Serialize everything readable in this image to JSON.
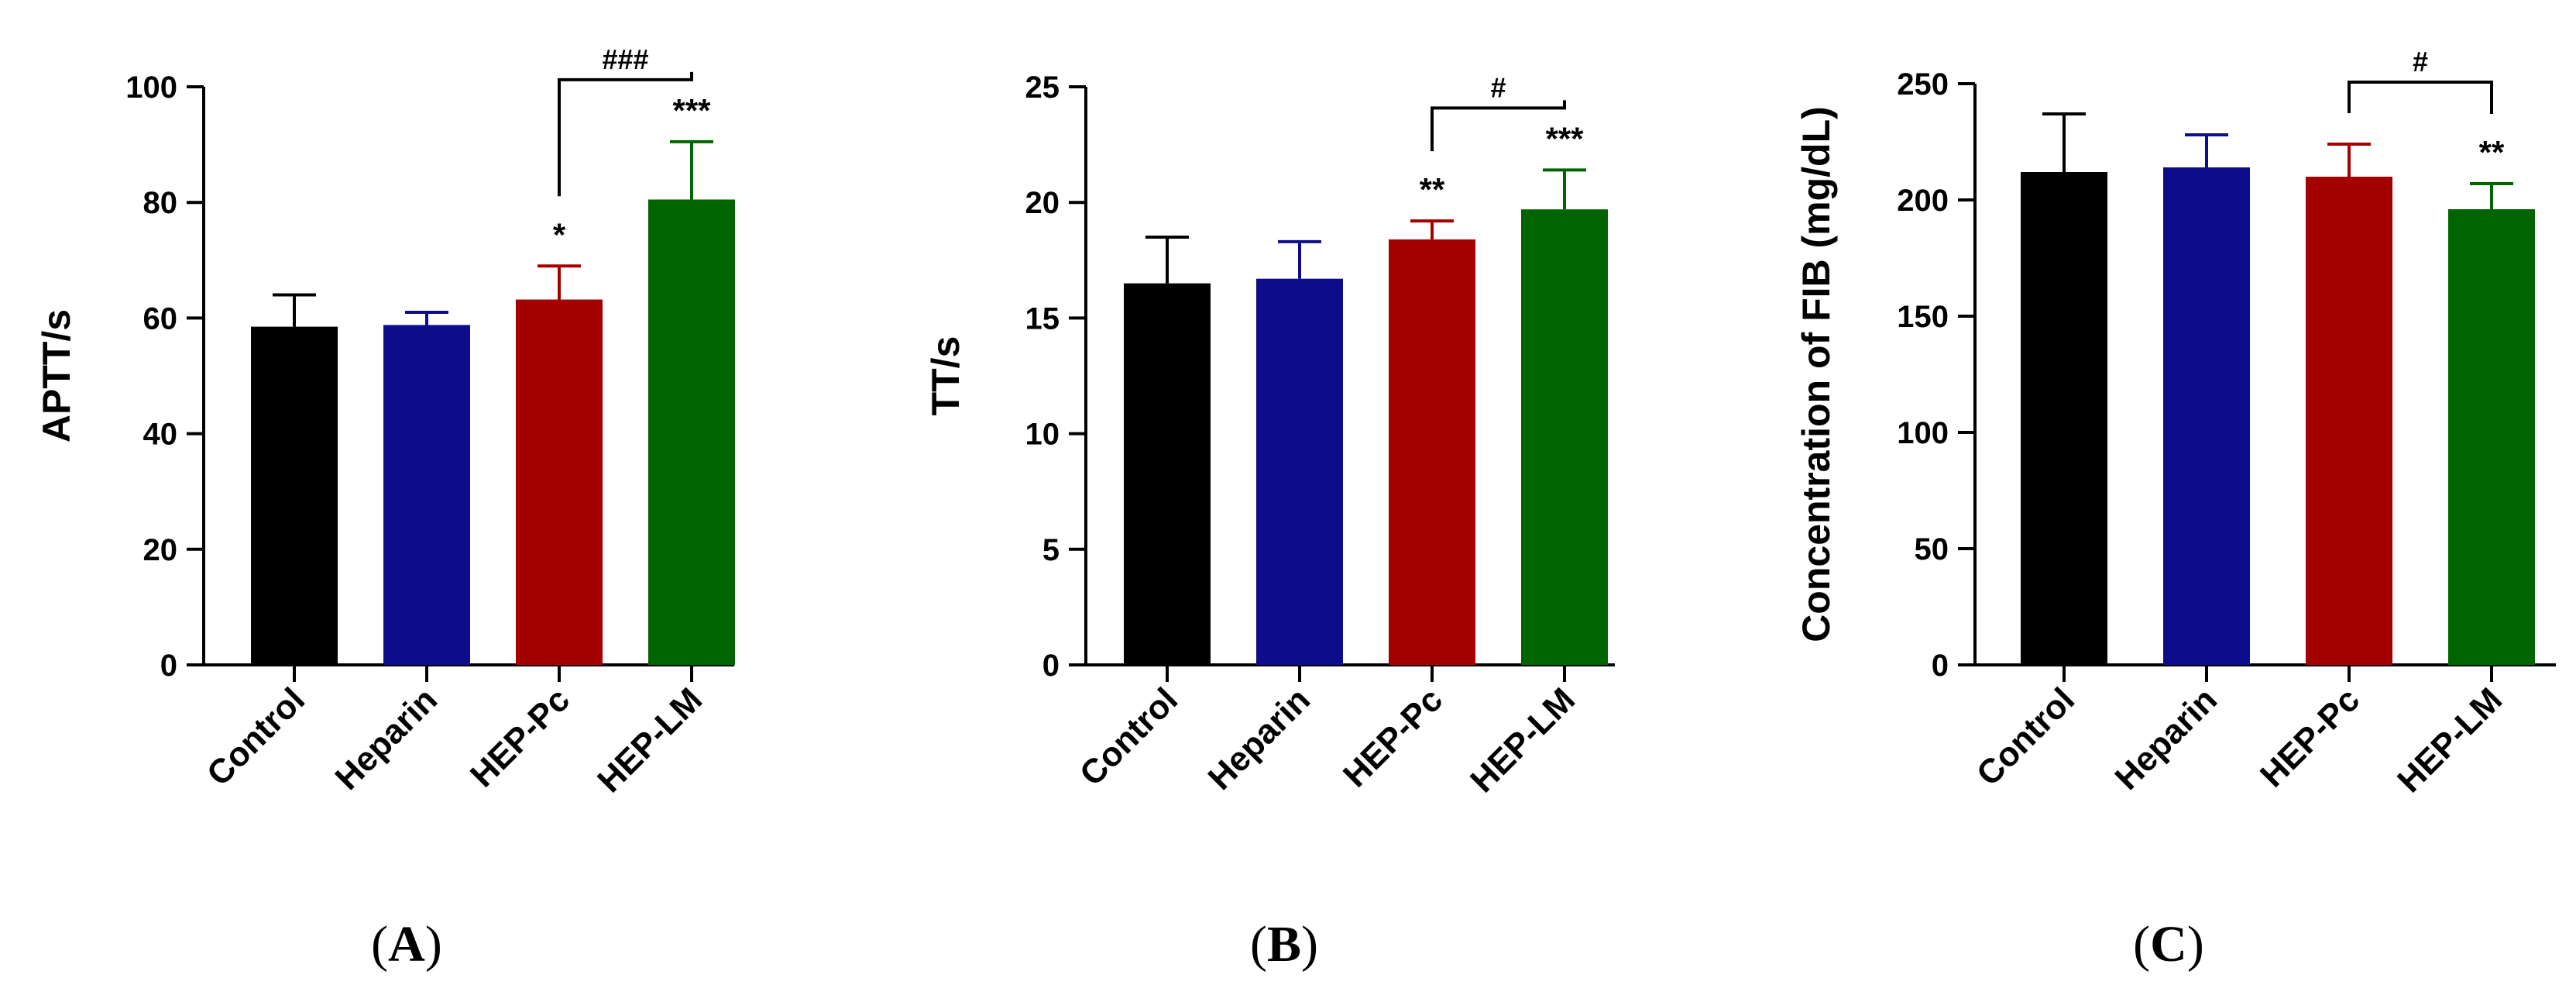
{
  "chart_data": [
    {
      "type": "bar",
      "panel_label": "A",
      "ylabel": "APTT/s",
      "ylim": [
        0,
        100
      ],
      "yticks": [
        0,
        20,
        40,
        60,
        80,
        100
      ],
      "categories": [
        "Control",
        "Heparin",
        "HEP-Pc",
        "HEP-LM"
      ],
      "values": [
        58.5,
        58.8,
        63.2,
        80.5
      ],
      "errors": [
        5.5,
        2.2,
        5.8,
        10.0
      ],
      "colors": [
        "#000000",
        "#0d0d8c",
        "#a50000",
        "#006400"
      ],
      "significance_marks": [
        "",
        "",
        "*",
        "***"
      ],
      "bracket": {
        "from": "HEP-Pc",
        "to": "HEP-LM",
        "label": "###"
      }
    },
    {
      "type": "bar",
      "panel_label": "B",
      "ylabel": "TT/s",
      "ylim": [
        0,
        25
      ],
      "yticks": [
        0,
        5,
        10,
        15,
        20,
        25
      ],
      "categories": [
        "Control",
        "Heparin",
        "HEP-Pc",
        "HEP-LM"
      ],
      "values": [
        16.5,
        16.7,
        18.4,
        19.7
      ],
      "errors": [
        2.0,
        1.6,
        0.8,
        1.7
      ],
      "colors": [
        "#000000",
        "#0d0d8c",
        "#a50000",
        "#006400"
      ],
      "significance_marks": [
        "",
        "",
        "**",
        "***"
      ],
      "bracket": {
        "from": "HEP-Pc",
        "to": "HEP-LM",
        "label": "#"
      }
    },
    {
      "type": "bar",
      "panel_label": "C",
      "ylabel": "Concentration of FIB (mg/dL)",
      "ylim": [
        0,
        250
      ],
      "yticks": [
        0,
        50,
        100,
        150,
        200,
        250
      ],
      "categories": [
        "Control",
        "Heparin",
        "HEP-Pc",
        "HEP-LM"
      ],
      "values": [
        212,
        214,
        210,
        196
      ],
      "errors": [
        25,
        14,
        14,
        11
      ],
      "colors": [
        "#000000",
        "#0d0d8c",
        "#a50000",
        "#006400"
      ],
      "significance_marks": [
        "",
        "",
        "",
        "**"
      ],
      "bracket": {
        "from": "HEP-Pc",
        "to": "HEP-LM",
        "label": "#"
      }
    }
  ]
}
